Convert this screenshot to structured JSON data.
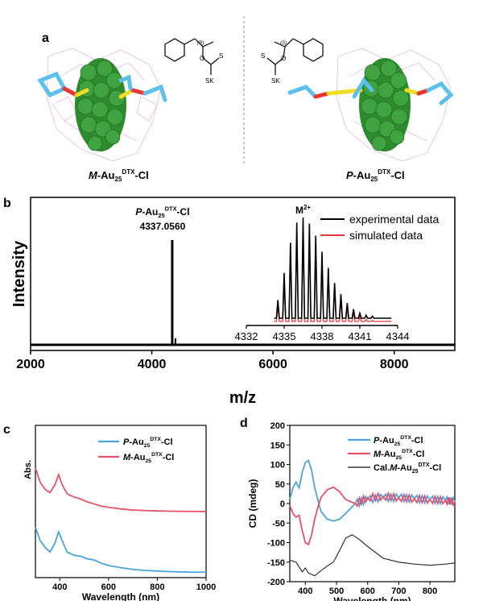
{
  "panels": {
    "a": "a",
    "b": "b",
    "c": "c",
    "d": "d"
  },
  "structures": {
    "left_label": {
      "prefix": "M",
      "main": "-Au",
      "sub": "25",
      "sup": "DTX",
      "tail": "-Cl"
    },
    "right_label": {
      "prefix": "P",
      "main": "-Au",
      "sub": "25",
      "sup": "DTX",
      "tail": "-Cl"
    },
    "left_stereo": "(R)",
    "right_stereo": "(S)",
    "atom_o": "O",
    "atom_s": "S",
    "atom_sk": "SK"
  },
  "colors": {
    "experimental": "#000000",
    "simulated": "#e8333f",
    "P": "#4aa3df",
    "M": "#e8516a",
    "cal": "#333333",
    "gold": "#2e8b2e",
    "ligand": "#5bc0eb"
  },
  "chart_data": [
    {
      "id": "b",
      "type": "line",
      "xlabel": "m/z",
      "ylabel": "Intensity",
      "xlim": [
        2000,
        9000
      ],
      "xticks": [
        "2000",
        "4000",
        "6000",
        "8000"
      ],
      "xtick_values": [
        2000,
        4000,
        6000,
        8000
      ],
      "peak_label": {
        "prefix": "P",
        "main": "-Au",
        "sub": "25",
        "sup": "DTX",
        "tail": "-Cl"
      },
      "peak_value": "4337.0560",
      "peak_x": 4337.056,
      "inset": {
        "title": "M",
        "title_sup": "2+",
        "xlim": [
          4332,
          4344
        ],
        "xticks": [
          "4332",
          "4335",
          "4338",
          "4341",
          "4344"
        ],
        "xtick_values": [
          4332,
          4335,
          4338,
          4341,
          4344
        ],
        "series": [
          {
            "name": "experimental data",
            "x": [
              4334.5,
              4335,
              4335.5,
              4336,
              4336.5,
              4337,
              4337.5,
              4338,
              4338.5,
              4339,
              4339.5,
              4340,
              4340.5,
              4341,
              4341.5,
              4342
            ],
            "y": [
              0.18,
              0.45,
              0.75,
              0.95,
              1.0,
              0.94,
              0.82,
              0.66,
              0.5,
              0.35,
              0.24,
              0.15,
              0.09,
              0.05,
              0.03,
              0.02
            ]
          },
          {
            "name": "simulated data",
            "x": [
              4334.5,
              4335,
              4335.5,
              4336,
              4336.5,
              4337,
              4337.5,
              4338,
              4338.5,
              4339,
              4339.5,
              4340,
              4340.5,
              4341,
              4341.5,
              4342
            ],
            "y": [
              0.14,
              0.4,
              0.7,
              0.9,
              0.96,
              0.9,
              0.78,
              0.62,
              0.46,
              0.32,
              0.21,
              0.13,
              0.08,
              0.04,
              0.02,
              0.01
            ]
          }
        ]
      }
    },
    {
      "id": "c",
      "type": "line",
      "xlabel": "Wavelength (nm)",
      "ylabel": "Abs.",
      "xlim": [
        300,
        1000
      ],
      "xticks": [
        "400",
        "600",
        "800",
        "1000"
      ],
      "xtick_values": [
        400,
        600,
        800,
        1000
      ],
      "series": [
        {
          "name": "P-Au25DTX-Cl",
          "x": [
            300,
            320,
            340,
            360,
            380,
            395,
            410,
            430,
            460,
            490,
            510,
            540,
            570,
            600,
            650,
            700,
            750,
            800,
            850,
            900,
            950,
            1000
          ],
          "y": [
            0.42,
            0.3,
            0.24,
            0.2,
            0.28,
            0.38,
            0.3,
            0.2,
            0.17,
            0.16,
            0.14,
            0.13,
            0.1,
            0.08,
            0.06,
            0.045,
            0.035,
            0.03,
            0.025,
            0.022,
            0.02,
            0.02
          ]
        },
        {
          "name": "M-Au25DTX-Cl",
          "x": [
            300,
            320,
            340,
            360,
            380,
            395,
            410,
            430,
            460,
            490,
            510,
            540,
            570,
            600,
            650,
            700,
            750,
            800,
            850,
            900,
            950,
            1000
          ],
          "y": [
            0.95,
            0.82,
            0.76,
            0.73,
            0.8,
            0.89,
            0.8,
            0.72,
            0.69,
            0.67,
            0.65,
            0.63,
            0.61,
            0.6,
            0.585,
            0.575,
            0.57,
            0.567,
            0.565,
            0.563,
            0.562,
            0.562
          ]
        }
      ]
    },
    {
      "id": "d",
      "type": "line",
      "xlabel": "Wavelength (nm)",
      "ylabel": "CD (mdeg)",
      "xlim": [
        350,
        880
      ],
      "ylim": [
        -200,
        200
      ],
      "xticks": [
        "400",
        "500",
        "600",
        "700",
        "800"
      ],
      "xtick_values": [
        400,
        500,
        600,
        700,
        800
      ],
      "yticks": [
        "200",
        "150",
        "100",
        "50",
        "0",
        "-50",
        "-100",
        "-150",
        "-200"
      ],
      "ytick_values": [
        200,
        150,
        100,
        50,
        0,
        -50,
        -100,
        -150,
        -200
      ],
      "series": [
        {
          "name": "P-Au25DTX-Cl",
          "x": [
            350,
            360,
            370,
            380,
            390,
            400,
            410,
            420,
            430,
            440,
            450,
            470,
            490,
            510,
            530,
            560,
            600,
            650,
            700,
            750,
            800,
            850,
            880
          ],
          "y": [
            10,
            40,
            55,
            40,
            80,
            105,
            110,
            85,
            40,
            10,
            -20,
            -40,
            -45,
            -40,
            -25,
            0,
            10,
            15,
            15,
            12,
            10,
            8,
            5
          ]
        },
        {
          "name": "M-Au25DTX-Cl",
          "x": [
            350,
            360,
            370,
            380,
            390,
            400,
            410,
            420,
            430,
            440,
            450,
            470,
            490,
            510,
            530,
            560,
            600,
            650,
            700,
            750,
            800,
            850,
            880
          ],
          "y": [
            -5,
            -25,
            -35,
            -30,
            -70,
            -100,
            -105,
            -80,
            -40,
            -10,
            15,
            35,
            42,
            30,
            10,
            0,
            15,
            18,
            15,
            12,
            10,
            8,
            5
          ]
        },
        {
          "name": "Cal.M-Au25DTX-Cl",
          "x": [
            350,
            370,
            390,
            400,
            410,
            430,
            450,
            470,
            490,
            510,
            530,
            550,
            570,
            600,
            650,
            700,
            750,
            800,
            850,
            880
          ],
          "y": [
            -145,
            -150,
            -175,
            -165,
            -178,
            -185,
            -172,
            -160,
            -150,
            -120,
            -88,
            -80,
            -90,
            -110,
            -140,
            -150,
            -155,
            -158,
            -155,
            -152
          ]
        }
      ]
    }
  ]
}
